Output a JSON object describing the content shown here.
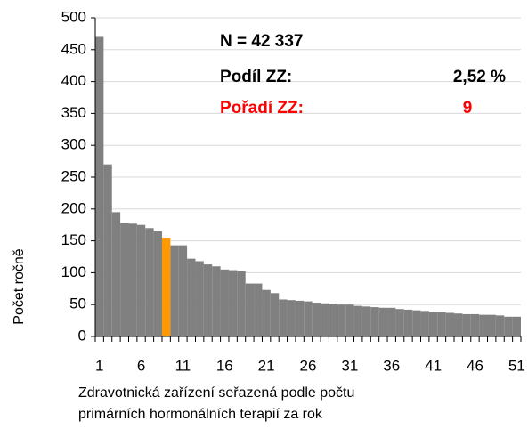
{
  "chart_data": {
    "type": "bar",
    "categories": [
      1,
      null,
      null,
      null,
      null,
      6,
      null,
      null,
      null,
      null,
      11,
      null,
      null,
      null,
      null,
      16,
      null,
      null,
      null,
      null,
      21,
      null,
      null,
      null,
      null,
      26,
      null,
      null,
      null,
      null,
      31,
      null,
      null,
      null,
      null,
      36,
      null,
      null,
      null,
      null,
      41,
      null,
      null,
      null,
      null,
      46,
      null,
      null,
      null,
      null,
      51
    ],
    "values": [
      470,
      270,
      195,
      178,
      177,
      175,
      170,
      165,
      155,
      143,
      143,
      122,
      118,
      113,
      110,
      105,
      104,
      102,
      83,
      83,
      73,
      68,
      58,
      57,
      56,
      55,
      53,
      52,
      51,
      50,
      50,
      48,
      47,
      46,
      45,
      45,
      43,
      42,
      41,
      40,
      38,
      38,
      37,
      36,
      35,
      35,
      34,
      34,
      33,
      31,
      31
    ],
    "colors": [
      "#808080",
      "#808080",
      "#808080",
      "#808080",
      "#808080",
      "#808080",
      "#808080",
      "#808080",
      "#ff9900",
      "#808080",
      "#808080",
      "#808080",
      "#808080",
      "#808080",
      "#808080",
      "#808080",
      "#808080",
      "#808080",
      "#808080",
      "#808080",
      "#808080",
      "#808080",
      "#808080",
      "#808080",
      "#808080",
      "#808080",
      "#808080",
      "#808080",
      "#808080",
      "#808080",
      "#808080",
      "#808080",
      "#808080",
      "#808080",
      "#808080",
      "#808080",
      "#808080",
      "#808080",
      "#808080",
      "#808080",
      "#808080",
      "#808080",
      "#808080",
      "#808080",
      "#808080",
      "#808080",
      "#808080",
      "#808080",
      "#808080",
      "#808080",
      "#808080"
    ],
    "ylim": [
      0,
      500
    ],
    "yticks": [
      0,
      50,
      100,
      150,
      200,
      250,
      300,
      350,
      400,
      450,
      500
    ],
    "grid": true,
    "ylabel": "Počet ročně",
    "xlabel": [
      "Zdravotnická zařízení seřazená podle počtu",
      "primárních hormonálních terapií za rok"
    ],
    "annotations": [
      {
        "text": "N = 42 337",
        "color": "#000000"
      },
      {
        "text": "Podíl ZZ:",
        "color": "#000000"
      },
      {
        "text": "2,52 %",
        "color": "#000000"
      },
      {
        "text": "Pořadí ZZ:",
        "color": "#ff0000"
      },
      {
        "text": "9",
        "color": "#ff0000"
      }
    ]
  }
}
